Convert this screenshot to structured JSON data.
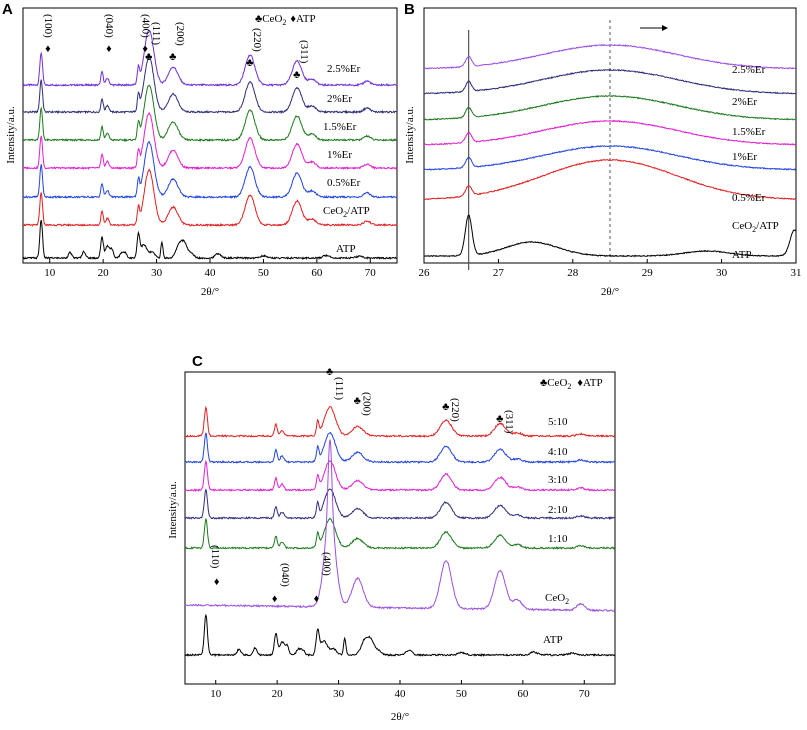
{
  "chart_data": [
    {
      "panel": "A",
      "type": "line",
      "xlabel": "2θ/°",
      "ylabel": "Intensity/a.u.",
      "xlim": [
        5,
        75
      ],
      "xticks": [
        "10",
        "20",
        "30",
        "40",
        "50",
        "60",
        "70"
      ],
      "series": [
        {
          "name": "2.5%Er",
          "color": "#6f2fd8"
        },
        {
          "name": "2%Er",
          "color": "#2e2e7a"
        },
        {
          "name": "1.5%Er",
          "color": "#1e7a1e"
        },
        {
          "name": "1%Er",
          "color": "#e020d0"
        },
        {
          "name": "0.5%Er",
          "color": "#2244dd"
        },
        {
          "name": "CeO2/ATP",
          "color": "#e02020"
        },
        {
          "name": "ATP",
          "color": "#000000"
        }
      ],
      "peaks": [
        {
          "label": "(100)",
          "x": 8.4,
          "phase": "ATP"
        },
        {
          "label": "(040)",
          "x": 19.8,
          "phase": "ATP"
        },
        {
          "label": "(400)",
          "x": 26.6,
          "phase": "ATP"
        },
        {
          "label": "(111)",
          "x": 28.6,
          "phase": "CeO2"
        },
        {
          "label": "(200)",
          "x": 33.1,
          "phase": "CeO2"
        },
        {
          "label": "(220)",
          "x": 47.5,
          "phase": "CeO2"
        },
        {
          "label": "(311)",
          "x": 56.3,
          "phase": "CeO2"
        }
      ],
      "legend": [
        "♣CeO₂",
        "♦ATP"
      ]
    },
    {
      "panel": "B",
      "type": "line",
      "xlabel": "2θ/°",
      "ylabel": "Intensity/a.u.",
      "xlim": [
        26,
        31
      ],
      "xticks": [
        "26",
        "27",
        "28",
        "29",
        "30",
        "31"
      ],
      "reference_lines": [
        26.6,
        28.5
      ],
      "series": [
        {
          "name": "2.5%Er",
          "color": "#9b4fe0"
        },
        {
          "name": "2%Er",
          "color": "#2e2e7a"
        },
        {
          "name": "1.5%Er",
          "color": "#1e7a1e"
        },
        {
          "name": "1%Er",
          "color": "#e020d0"
        },
        {
          "name": "0.5%Er",
          "color": "#2244dd"
        },
        {
          "name": "CeO2/ATP",
          "color": "#e02020"
        },
        {
          "name": "ATP",
          "color": "#000000"
        }
      ]
    },
    {
      "panel": "C",
      "type": "line",
      "xlabel": "2θ/°",
      "ylabel": "Intensity/a.u.",
      "xlim": [
        5,
        75
      ],
      "xticks": [
        "10",
        "20",
        "30",
        "40",
        "50",
        "60",
        "70"
      ],
      "series": [
        {
          "name": "5:10",
          "color": "#e02020"
        },
        {
          "name": "4:10",
          "color": "#2244dd"
        },
        {
          "name": "3:10",
          "color": "#e020d0"
        },
        {
          "name": "2:10",
          "color": "#2e2e7a"
        },
        {
          "name": "1:10",
          "color": "#1e7a1e"
        },
        {
          "name": "CeO2",
          "color": "#9b4fe0"
        },
        {
          "name": "ATP",
          "color": "#000000"
        }
      ],
      "peaks": [
        {
          "label": "(110)",
          "x": 8.4,
          "phase": "ATP"
        },
        {
          "label": "(040)",
          "x": 19.8,
          "phase": "ATP"
        },
        {
          "label": "(400)",
          "x": 26.6,
          "phase": "ATP"
        },
        {
          "label": "(111)",
          "x": 28.6,
          "phase": "CeO2"
        },
        {
          "label": "(200)",
          "x": 33.1,
          "phase": "CeO2"
        },
        {
          "label": "(220)",
          "x": 47.5,
          "phase": "CeO2"
        },
        {
          "label": "(311)",
          "x": 56.3,
          "phase": "CeO2"
        }
      ],
      "legend": [
        "♣CeO₂",
        "♦ATP"
      ]
    }
  ],
  "labels": {
    "panel_a": "A",
    "panel_b": "B",
    "panel_c": "C",
    "legend_ceo2_sym": "♣",
    "legend_ceo2": "CeO",
    "legend_ceo2_sub": "2",
    "legend_atp": "♦ATP",
    "ceo2atp_pre": "CeO",
    "ceo2atp_sub": "2",
    "ceo2atp_post": "/ATP",
    "ceo2_pre": "CeO",
    "ceo2_sub": "2"
  }
}
